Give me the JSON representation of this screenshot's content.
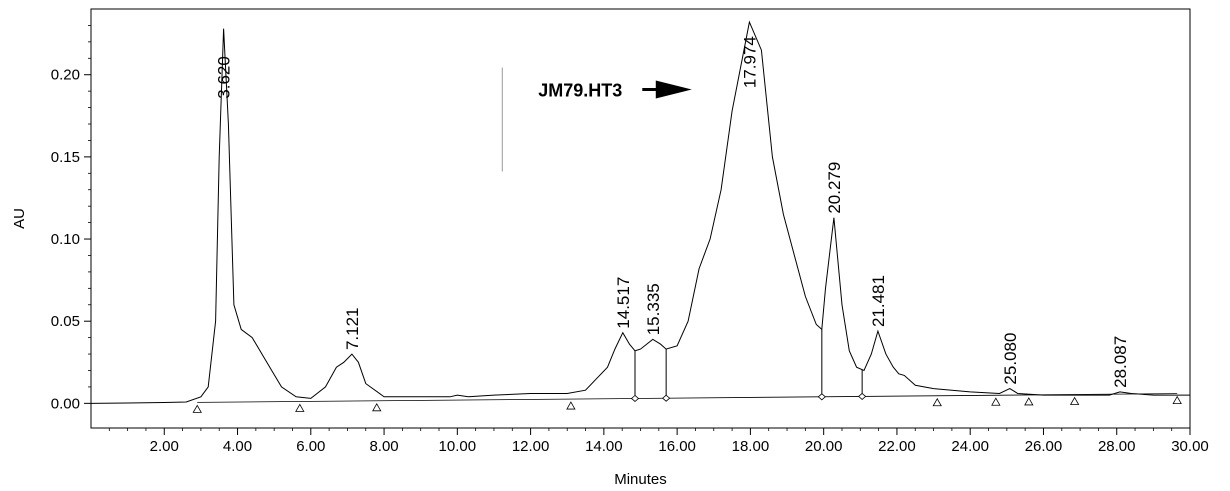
{
  "chart_data": {
    "type": "line",
    "title": "",
    "xlabel": "Minutes",
    "ylabel": "AU",
    "xlim": [
      0,
      30
    ],
    "ylim": [
      -0.015,
      0.24
    ],
    "grid": false,
    "x_ticks": [
      "2.00",
      "4.00",
      "6.00",
      "8.00",
      "10.00",
      "12.00",
      "14.00",
      "16.00",
      "18.00",
      "20.00",
      "22.00",
      "24.00",
      "26.00",
      "28.00",
      "30.00"
    ],
    "y_ticks": [
      "0.00",
      "0.05",
      "0.10",
      "0.15",
      "0.20"
    ],
    "series": [
      {
        "x": [
          0,
          1,
          2,
          2.6,
          3.0,
          3.2,
          3.4,
          3.5,
          3.62,
          3.75,
          3.9,
          4.1,
          4.4,
          4.8,
          5.2,
          5.6,
          6.0,
          6.4,
          6.7,
          6.9,
          7.121,
          7.3,
          7.5,
          8.0,
          9.0,
          9.8,
          10.0,
          10.3,
          11.0,
          12.0,
          13.0,
          13.5,
          13.8,
          14.1,
          14.3,
          14.517,
          14.7,
          14.85,
          15.0,
          15.335,
          15.55,
          15.7,
          16.0,
          16.3,
          16.6,
          16.9,
          17.2,
          17.5,
          17.974,
          18.3,
          18.6,
          18.9,
          19.2,
          19.5,
          19.8,
          19.95,
          20.05,
          20.279,
          20.5,
          20.7,
          20.9,
          21.1,
          21.3,
          21.481,
          21.7,
          21.9,
          22.05,
          22.2,
          22.5,
          23.0,
          24.0,
          24.8,
          25.08,
          25.3,
          26.0,
          27.0,
          27.8,
          28.087,
          28.4,
          29.0,
          30.0
        ],
        "y": [
          0.0,
          0.0002,
          0.0005,
          0.0008,
          0.004,
          0.01,
          0.05,
          0.15,
          0.228,
          0.17,
          0.06,
          0.045,
          0.04,
          0.025,
          0.01,
          0.004,
          0.003,
          0.01,
          0.022,
          0.025,
          0.03,
          0.025,
          0.012,
          0.004,
          0.004,
          0.004,
          0.005,
          0.004,
          0.005,
          0.006,
          0.006,
          0.008,
          0.015,
          0.022,
          0.033,
          0.043,
          0.036,
          0.032,
          0.033,
          0.039,
          0.036,
          0.033,
          0.035,
          0.05,
          0.082,
          0.1,
          0.13,
          0.178,
          0.232,
          0.215,
          0.15,
          0.115,
          0.09,
          0.065,
          0.048,
          0.045,
          0.07,
          0.113,
          0.06,
          0.032,
          0.022,
          0.02,
          0.03,
          0.044,
          0.03,
          0.022,
          0.018,
          0.017,
          0.011,
          0.009,
          0.007,
          0.006,
          0.009,
          0.006,
          0.005,
          0.005,
          0.005,
          0.007,
          0.006,
          0.005,
          0.005
        ]
      }
    ],
    "peaks": [
      {
        "rt": 3.62,
        "label": "3.620",
        "height": 0.228
      },
      {
        "rt": 7.121,
        "label": "7.121",
        "height": 0.03
      },
      {
        "rt": 14.517,
        "label": "14.517",
        "height": 0.043
      },
      {
        "rt": 15.335,
        "label": "15.335",
        "height": 0.039
      },
      {
        "rt": 17.974,
        "label": "17.974",
        "height": 0.232
      },
      {
        "rt": 20.279,
        "label": "20.279",
        "height": 0.113
      },
      {
        "rt": 21.481,
        "label": "21.481",
        "height": 0.044
      },
      {
        "rt": 25.08,
        "label": "25.080",
        "height": 0.009
      },
      {
        "rt": 28.087,
        "label": "28.087",
        "height": 0.007
      }
    ],
    "triangle_markers": [
      2.9,
      5.7,
      7.8,
      13.1,
      23.1,
      24.7,
      25.6,
      26.85,
      29.65
    ],
    "diamond_markers": [
      14.85,
      15.7,
      19.95,
      21.05
    ],
    "drop_lines": [
      14.85,
      15.7,
      19.95,
      21.05
    ],
    "annotations": [
      {
        "text": "JM79.HT3",
        "x": 11.5,
        "y": 0.191,
        "arrow_to": 16.4
      }
    ]
  }
}
